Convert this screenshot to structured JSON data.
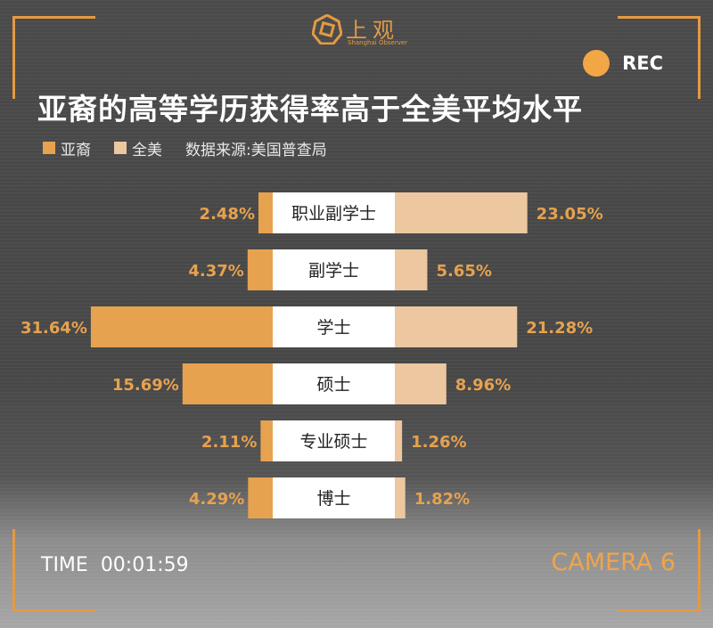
{
  "brand": {
    "name": "上观",
    "subtitle": "Shanghai Observer",
    "color": "#e39a45"
  },
  "rec": {
    "label": "REC",
    "dot_color": "#f3a646"
  },
  "title": "亚裔的高等学历获得率高于全美平均水平",
  "legend": {
    "items": [
      {
        "label": "亚裔",
        "color": "#e7a24f"
      },
      {
        "label": "全美",
        "color": "#ecc79f"
      }
    ],
    "source": "数据来源:美国普查局"
  },
  "footer": {
    "time_label": "TIME",
    "time_value": "00:01:59",
    "camera": "CAMERA 6"
  },
  "chart_data": {
    "type": "bar",
    "orientation": "horizontal-butterfly",
    "categories": [
      "职业副学士",
      "副学士",
      "学士",
      "硕士",
      "专业硕士",
      "博士"
    ],
    "series": [
      {
        "name": "亚裔",
        "values": [
          2.48,
          4.37,
          31.64,
          15.69,
          2.11,
          4.29
        ],
        "labels": [
          "2.48%",
          "4.37%",
          "31.64%",
          "15.69%",
          "2.11%",
          "4.29%"
        ],
        "color": "#e7a24f"
      },
      {
        "name": "全美",
        "values": [
          23.05,
          5.65,
          21.28,
          8.96,
          1.26,
          1.82
        ],
        "labels": [
          "23.05%",
          "5.65%",
          "21.28%",
          "8.96%",
          "1.26%",
          "1.82%"
        ],
        "color": "#ecc79f"
      }
    ],
    "unit": "%",
    "label_color": "#e7a24f"
  }
}
